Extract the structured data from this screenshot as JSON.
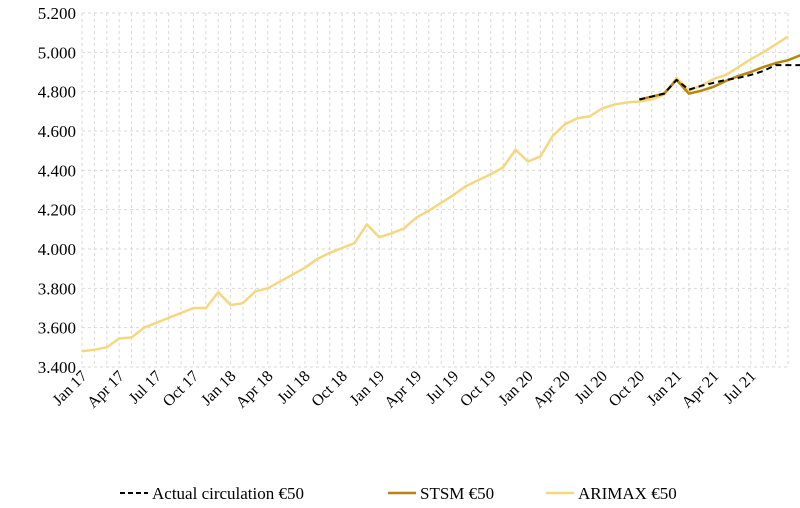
{
  "chart_data": {
    "type": "line",
    "title": "",
    "xlabel": "",
    "ylabel": "",
    "ylim": [
      3400,
      5200
    ],
    "yticks": [
      3400,
      3600,
      3800,
      4000,
      4200,
      4400,
      4600,
      4800,
      5000,
      5200
    ],
    "ytick_labels": [
      "3.400",
      "3.600",
      "3.800",
      "4.000",
      "4.200",
      "4.400",
      "4.600",
      "4.800",
      "5.000",
      "5.200"
    ],
    "x_tick_labels": [
      "Jan 17",
      "Apr 17",
      "Jul 17",
      "Oct 17",
      "Jan 18",
      "Apr 18",
      "Jul 18",
      "Oct 18",
      "Jan 19",
      "Apr 19",
      "Jul 19",
      "Oct 19",
      "Jan 20",
      "Apr 20",
      "Jul 20",
      "Oct 20",
      "Jan 21",
      "Apr 21",
      "Jul 21"
    ],
    "x_tick_every": 3,
    "grid": true,
    "legend_position": "bottom",
    "series": [
      {
        "name": "Actual circulation €50",
        "color": "#000000",
        "style": "dashed",
        "start_index": 45,
        "values": [
          4760,
          4775,
          4790,
          4860,
          4810,
          4830,
          4845,
          4860,
          4870,
          4885,
          4905,
          4935,
          4935,
          4935
        ]
      },
      {
        "name": "STSM €50",
        "color": "#b8860b",
        "style": "solid",
        "start_index": 45,
        "values": [
          4760,
          4775,
          4790,
          4860,
          4790,
          4805,
          4825,
          4855,
          4880,
          4900,
          4925,
          4945,
          4960,
          4985
        ]
      },
      {
        "name": "ARIMAX €50",
        "color": "#f5d77f",
        "style": "solid",
        "start_index": 0,
        "values": [
          3480,
          3488,
          3500,
          3545,
          3550,
          3600,
          3625,
          3650,
          3675,
          3700,
          3700,
          3780,
          3715,
          3725,
          3785,
          3800,
          3835,
          3870,
          3905,
          3950,
          3980,
          4005,
          4030,
          4125,
          4060,
          4080,
          4105,
          4160,
          4195,
          4235,
          4275,
          4320,
          4350,
          4380,
          4415,
          4505,
          4445,
          4470,
          4575,
          4635,
          4665,
          4675,
          4715,
          4735,
          4745,
          4750,
          4760,
          4785,
          4870,
          4805,
          4830,
          4865,
          4885,
          4925,
          4965,
          5000,
          5040,
          5080
        ]
      }
    ]
  }
}
